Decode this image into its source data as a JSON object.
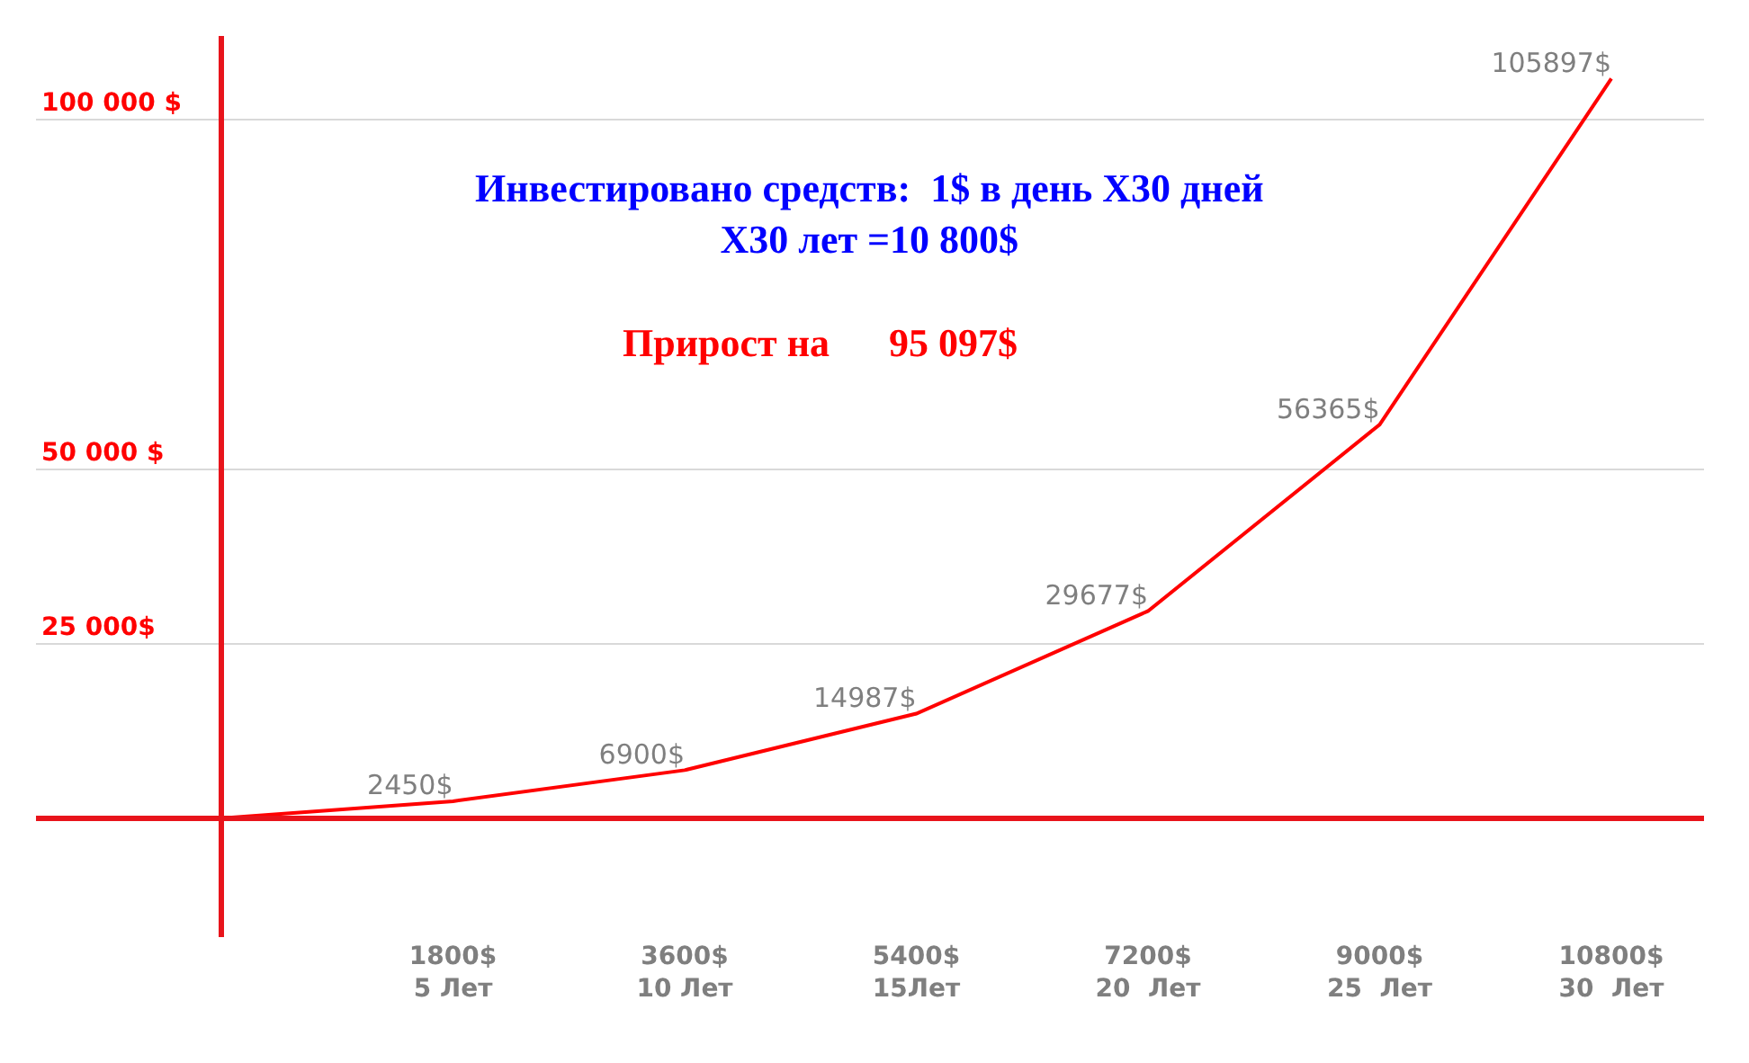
{
  "chart_data": {
    "type": "line",
    "categories": [
      null,
      "1800$\n5 Лет",
      "3600$\n10 Лет",
      "5400$\n15Лет",
      "7200$\n20  Лет",
      "9000$\n25  Лет",
      "10800$\n30  Лет"
    ],
    "series": [
      {
        "color": "#ff0000",
        "values": [
          0,
          2450,
          6900,
          14987,
          29677,
          56365,
          105897
        ],
        "value_labels": [
          null,
          "2450$",
          "6900$",
          "14987$",
          "29677$",
          "56365$",
          "105897$"
        ]
      }
    ],
    "ylim": [
      -17000,
      112000
    ],
    "yticks": [
      {
        "value": 25000,
        "label": "25 000$"
      },
      {
        "value": 50000,
        "label": "50 000 $"
      },
      {
        "value": 100000,
        "label": "100 000 $"
      }
    ],
    "ref_lines": [
      {
        "axis": "y",
        "value": 0,
        "color": "#e8141b"
      }
    ],
    "grid": "y",
    "legend": false,
    "marker": "none",
    "line_style": "solid",
    "annotations": [
      "Инвестировано средств:  1$ в день X30 дней\nX30 лет =10 800$",
      "Прирост на      95 097$"
    ]
  }
}
